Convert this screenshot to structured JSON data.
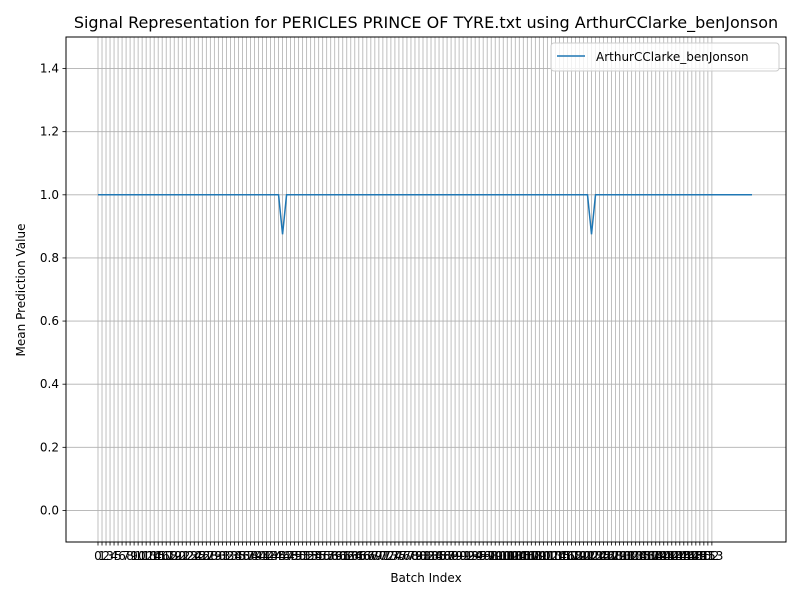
{
  "chart_data": {
    "type": "line",
    "title": "Signal Representation for PERICLES PRINCE OF TYRE.txt using ArthurCClarke_benJonson",
    "xlabel": "Batch Index",
    "ylabel": "Mean Prediction Value",
    "ylim": [
      -0.1,
      1.5
    ],
    "yticks": [
      0.0,
      0.2,
      0.4,
      0.6,
      0.8,
      1.0,
      1.2,
      1.4
    ],
    "grid": true,
    "legend_position": "top-right",
    "x_start": 0,
    "x_end": 163,
    "series": [
      {
        "name": "ArthurCClarke_benJonson",
        "color": "#1f77b4",
        "baseline": 1.0,
        "dips": [
          {
            "x": 46,
            "y": 0.875
          },
          {
            "x": 123,
            "y": 0.875
          }
        ]
      }
    ],
    "xtick_labels": [
      "0",
      "1",
      "2",
      "3",
      "4",
      "5",
      "6",
      "7",
      "8",
      "9",
      "10",
      "11",
      "12",
      "13",
      "14",
      "15",
      "16",
      "17",
      "18",
      "19",
      "20",
      "21",
      "22",
      "23",
      "24",
      "25",
      "26",
      "27",
      "28",
      "29",
      "30",
      "31",
      "32",
      "33",
      "34",
      "35",
      "36",
      "37",
      "38",
      "39",
      "40",
      "41",
      "42",
      "43",
      "44",
      "45",
      "46",
      "47",
      "48",
      "49",
      "50",
      "51",
      "52",
      "53",
      "54",
      "55",
      "56",
      "57",
      "58",
      "59",
      "60",
      "61",
      "62",
      "63",
      "64",
      "65",
      "66",
      "67",
      "68",
      "69",
      "70",
      "71",
      "72",
      "73",
      "74",
      "75",
      "76",
      "77",
      "78",
      "79",
      "80",
      "81",
      "82",
      "83",
      "84",
      "85",
      "86",
      "87",
      "88",
      "89",
      "90",
      "91",
      "92",
      "93",
      "94",
      "95",
      "96",
      "97",
      "98",
      "99",
      "100",
      "101",
      "102",
      "103",
      "104",
      "105",
      "106",
      "107",
      "108",
      "109",
      "110",
      "111",
      "112",
      "113",
      "114",
      "115",
      "116",
      "117",
      "118",
      "119",
      "120",
      "121",
      "122",
      "123",
      "124",
      "125",
      "126",
      "127",
      "128",
      "129",
      "130",
      "131",
      "132",
      "133",
      "134",
      "135",
      "136",
      "137",
      "138",
      "139",
      "140",
      "141",
      "142",
      "143",
      "144",
      "145",
      "146",
      "147",
      "148",
      "149",
      "150",
      "151",
      "152",
      "153"
    ]
  }
}
